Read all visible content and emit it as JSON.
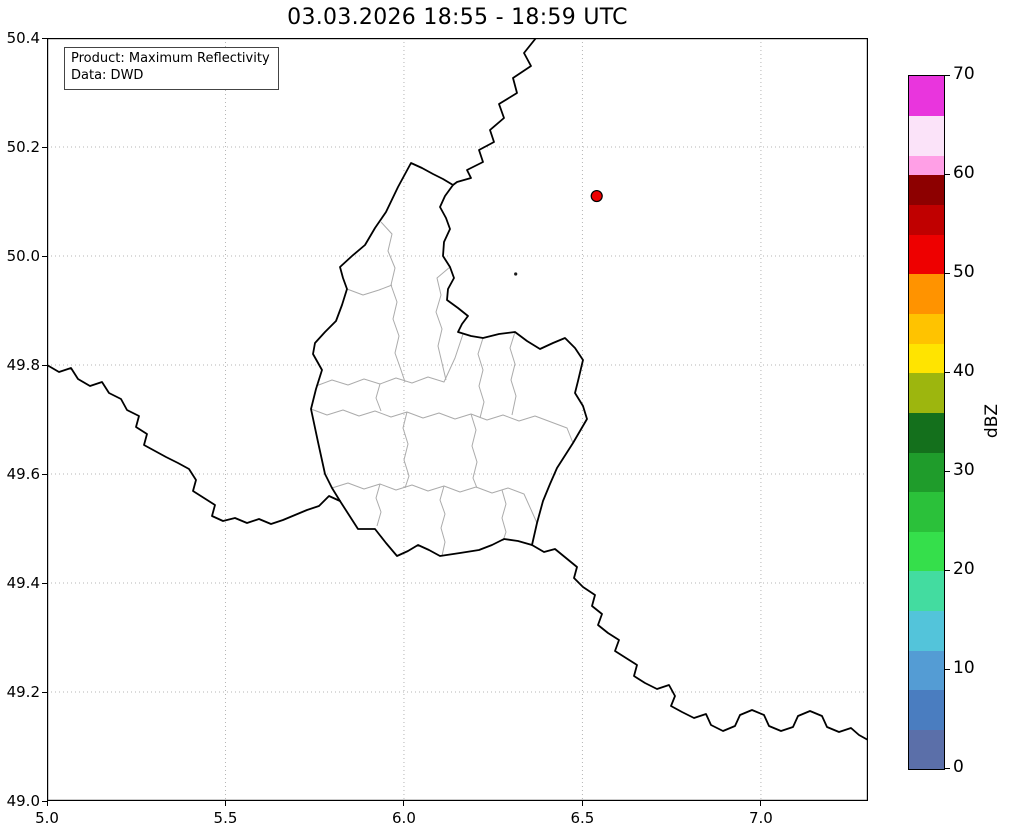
{
  "title": "03.03.2026 18:55 - 18:59 UTC",
  "info_box": {
    "line1": "Product: Maximum Reflectivity",
    "line2": "Data: DWD"
  },
  "chart_data": {
    "type": "map",
    "title": "03.03.2026 18:55 - 18:59 UTC",
    "description": "Weather radar maximum reflectivity map of the Luxembourg region; no precipitation echoes visible in this frame",
    "grid": "dotted",
    "x_axis": {
      "label": "",
      "range": [
        5.0,
        7.3
      ],
      "tick_values": [
        5.0,
        5.5,
        6.0,
        6.5,
        7.0
      ],
      "ticks": [
        "5.0",
        "5.5",
        "6.0",
        "6.5",
        "7.0"
      ]
    },
    "y_axis": {
      "label": "",
      "range": [
        49.0,
        50.4
      ],
      "tick_values": [
        49.0,
        49.2,
        49.4,
        49.6,
        49.8,
        50.0,
        50.2,
        50.4
      ],
      "ticks": [
        "49.0",
        "49.2",
        "49.4",
        "49.6",
        "49.8",
        "50.0",
        "50.2",
        "50.4"
      ]
    },
    "markers": [
      {
        "name": "radar-site-marker",
        "lon": 6.54,
        "lat": 50.11,
        "color": "#ee0000",
        "edge": "#000000",
        "edge_width": 1.2,
        "radius": 5.5
      },
      {
        "name": "small-dot-marker",
        "lon": 6.313,
        "lat": 49.967,
        "color": "#1a1a1a",
        "edge": "none",
        "edge_width": 0,
        "radius": 1.6
      }
    ],
    "colorbar": {
      "label": "dBZ",
      "min": 0,
      "max": 70,
      "ticks": [
        0,
        10,
        20,
        30,
        40,
        50,
        60,
        70
      ],
      "segments": [
        {
          "from": 0,
          "to": 4,
          "color": "#5b6fa9"
        },
        {
          "from": 4,
          "to": 8,
          "color": "#4a7dc0"
        },
        {
          "from": 8,
          "to": 12,
          "color": "#549cd4"
        },
        {
          "from": 12,
          "to": 16,
          "color": "#53c4da"
        },
        {
          "from": 16,
          "to": 20,
          "color": "#43dca0"
        },
        {
          "from": 20,
          "to": 24,
          "color": "#35df4b"
        },
        {
          "from": 24,
          "to": 28,
          "color": "#2bc13a"
        },
        {
          "from": 28,
          "to": 32,
          "color": "#1f9c2b"
        },
        {
          "from": 32,
          "to": 36,
          "color": "#14701c"
        },
        {
          "from": 36,
          "to": 40,
          "color": "#9db60e"
        },
        {
          "from": 40,
          "to": 43,
          "color": "#ffe400"
        },
        {
          "from": 43,
          "to": 46,
          "color": "#ffc300"
        },
        {
          "from": 46,
          "to": 50,
          "color": "#ff9300"
        },
        {
          "from": 50,
          "to": 54,
          "color": "#ee0000"
        },
        {
          "from": 54,
          "to": 57,
          "color": "#c00000"
        },
        {
          "from": 57,
          "to": 60,
          "color": "#8d0000"
        },
        {
          "from": 60,
          "to": 62,
          "color": "#ff9fe6"
        },
        {
          "from": 62,
          "to": 66,
          "color": "#fbe3f9"
        },
        {
          "from": 66,
          "to": 70,
          "color": "#e935dd"
        }
      ]
    }
  },
  "map": {
    "country_border_color": "#000000",
    "district_border_color": "#ababab",
    "country_paths": [
      "M489,0 L477,15 L484,28 L466,40 L470,55 L452,66 L457,80 L443,92 L447,104 L432,112 L436,124 L420,132 L424,140 L410,144 L406,147",
      "M406,147 L398,158 L393,169 L399,180 L403,191 L397,204 L396,218 L403,229 L407,240 L401,251 L400,262 L411,270 L421,278 L415,286 L411,294 L424,298 L436,300 L452,296 L468,294 L480,303 L493,311 L506,305 L518,300 L528,310 L536,322 L531,343 L528,355 L536,368 L540,381 L526,405 L510,430 L503,446 L496,463 L490,485 L485,507 L471,503 L457,501 L445,507 L432,512 L413,515 L393,518 L382,512 L371,507 L361,513 L350,518 L339,505 L328,491 L320,491 L311,491 L302,477 L293,463 L285,450 L278,436 L271,404 L264,371 L269,351 L275,332 L266,316 L268,305 L278,294 L289,283 L295,267 L300,251 L296,240 L293,229 L305,218 L318,207 L328,190 L339,174 L351,149 L364,125 L375,130 L386,136 L396,141 Z",
      "M485,507 L497,514 L508,511 L519,520 L530,529 L527,540 L536,549 L548,557 L545,568 L555,576 L551,587 L561,595 L572,602 L568,613 L579,620 L590,627 L587,638 L598,645 L610,651 L622,647 L628,658 L624,668 L635,674 L647,680 L659,676 L664,687 L676,693 L688,688 L693,677 L705,672 L717,677 L722,688 L734,693 L746,689 L751,678 L763,673 L775,678 L780,689 L792,694 L804,690 L812,697 L821,702",
      "M0,327 L12,334 L24,330 L31,341 L43,348 L55,344 L62,355 L74,361 L80,372 L92,378 L89,389 L100,396 L97,407 L108,413 L119,419 L131,425 L142,431 L149,442 L146,453 L157,460 L168,467 L165,478 L176,483 L188,480 L200,485 L212,481 L224,486 L236,482 L248,477 L260,472 L272,468 L282,458 L293,463"
    ],
    "district_paths": [
      "M269,348 L285,342 L301,347 L317,341 L333,346 L349,340 L365,345 L381,339 L397,344 L408,320 L416,296",
      "M334,184 L345,196 L341,213 L348,230 L344,247 L350,264 L346,281 L352,298 L348,315 L354,332 L358,344",
      "M403,229 L390,240 L394,257 L389,274 L395,291 L391,308 L395,325 L399,342",
      "M300,251 L316,257 L332,252 L345,247",
      "M264,371 L280,377 L296,372 L312,378 L328,373 L344,379 L360,374 L376,380 L392,375 L408,381 L424,376 L440,382 L456,377 L472,383 L488,378 L504,384 L520,390 L526,405",
      "M285,450 L301,445 L317,451 L333,446 L349,452 L365,447 L381,453 L397,448 L413,454 L429,449 L445,455 L461,450 L477,456 L490,485",
      "M333,346 L329,360 L334,373",
      "M436,300 L431,316 L436,332 L432,348 L437,364 L433,380",
      "M468,294 L463,310 L468,326 L464,342 L469,358 L465,377",
      "M360,374 L356,390 L361,406 L357,422 L362,438 L358,450",
      "M424,376 L429,392 L425,408 L430,424 L426,440 L430,450",
      "M397,448 L393,462 L398,476 L394,490 L398,504 L395,518",
      "M455,452 L459,466 L455,480 L459,494 L456,503",
      "M333,446 L329,460 L334,474 L330,488"
    ]
  }
}
